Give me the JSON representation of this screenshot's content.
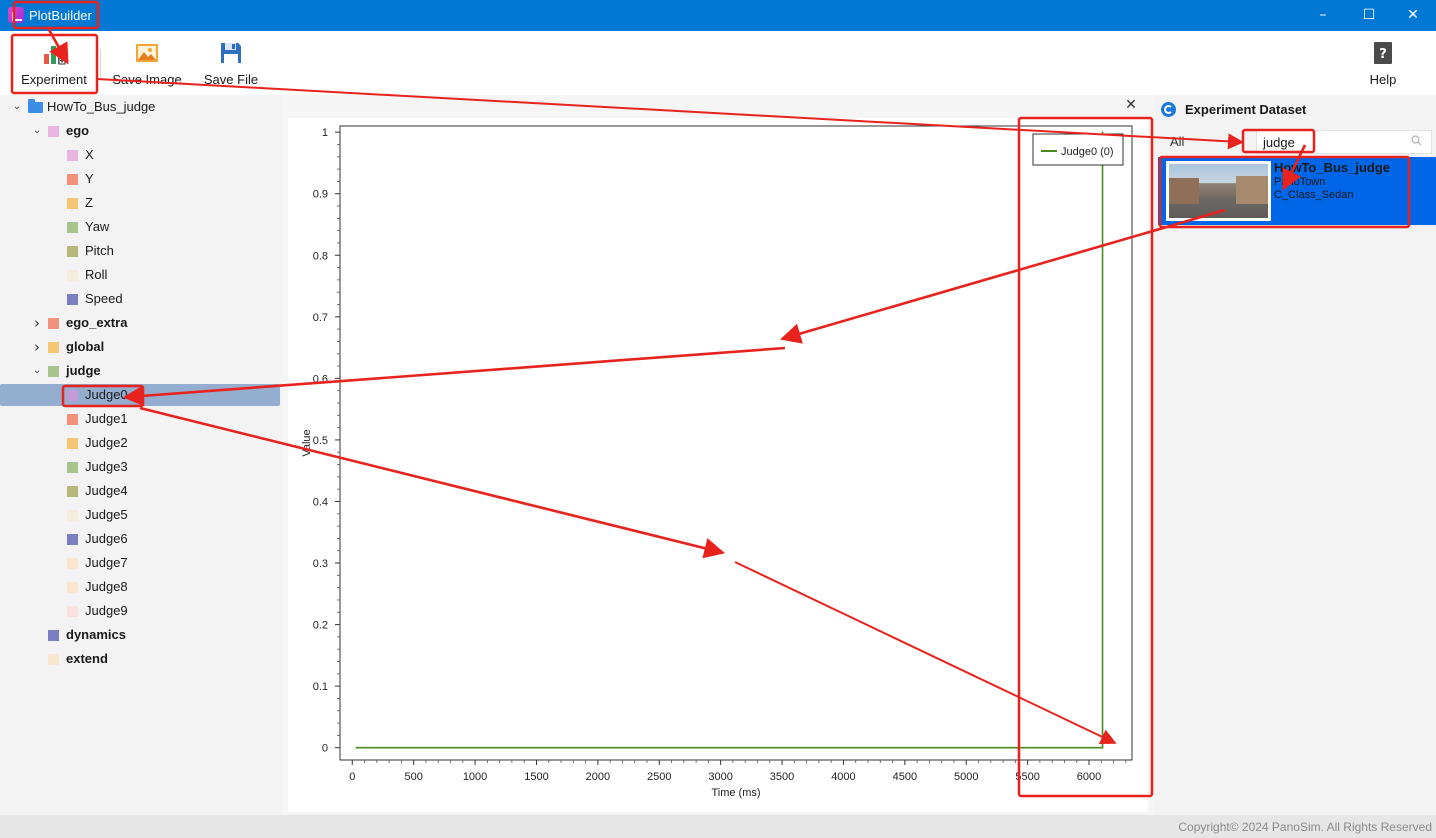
{
  "window": {
    "title": "PlotBuilder",
    "minimize_icon": "minimize-icon",
    "maximize_icon": "maximize-icon",
    "close_icon": "close-icon"
  },
  "toolbar": {
    "experiment": "Experiment",
    "save_image": "Save Image",
    "save_file": "Save File",
    "help": "Help"
  },
  "tree": {
    "root": "HowTo_Bus_judge",
    "groups": [
      {
        "label": "ego",
        "color": "#e8b4e0",
        "expanded": true,
        "items": [
          {
            "label": "X",
            "color": "#e8b4e0"
          },
          {
            "label": "Y",
            "color": "#f0937a"
          },
          {
            "label": "Z",
            "color": "#f5c774"
          },
          {
            "label": "Yaw",
            "color": "#a8c48c"
          },
          {
            "label": "Pitch",
            "color": "#b5b77a"
          },
          {
            "label": "Roll",
            "color": "#f5ecdf"
          },
          {
            "label": "Speed",
            "color": "#7b7fbf"
          }
        ]
      },
      {
        "label": "ego_extra",
        "color": "#f0937a",
        "expanded": false,
        "items": []
      },
      {
        "label": "global",
        "color": "#f5c774",
        "expanded": false,
        "items": []
      },
      {
        "label": "judge",
        "color": "#a8c48c",
        "expanded": true,
        "items": [
          {
            "label": "Judge0",
            "color": "#c39bd6",
            "selected": true
          },
          {
            "label": "Judge1",
            "color": "#f0937a"
          },
          {
            "label": "Judge2",
            "color": "#f5c774"
          },
          {
            "label": "Judge3",
            "color": "#a8c48c"
          },
          {
            "label": "Judge4",
            "color": "#b5b77a"
          },
          {
            "label": "Judge5",
            "color": "#f5ecdf"
          },
          {
            "label": "Judge6",
            "color": "#7b7fbf"
          },
          {
            "label": "Judge7",
            "color": "#f8e6d0"
          },
          {
            "label": "Judge8",
            "color": "#f8e6d0"
          },
          {
            "label": "Judge9",
            "color": "#f8e2e0"
          }
        ]
      },
      {
        "label": "dynamics",
        "color": "#7b7fbf",
        "expanded": null,
        "items": []
      },
      {
        "label": "extend",
        "color": "#f8e6d0",
        "expanded": null,
        "items": []
      }
    ]
  },
  "chart_data": {
    "type": "line",
    "title": "",
    "xlabel": "Time (ms)",
    "ylabel": "Value",
    "xlim": [
      -100,
      6350
    ],
    "ylim": [
      -0.02,
      1.01
    ],
    "xticks": [
      0,
      500,
      1000,
      1500,
      2000,
      2500,
      3000,
      3500,
      4000,
      4500,
      5000,
      5500,
      6000
    ],
    "yticks": [
      0,
      0.1,
      0.2,
      0.3,
      0.4,
      0.5,
      0.6,
      0.7,
      0.8,
      0.9,
      1
    ],
    "legend": "top-right",
    "grid": false,
    "series": [
      {
        "name": "Judge0 (0)",
        "color": "#4a8a1c",
        "x": [
          30,
          6100,
          6110,
          6110
        ],
        "y": [
          0,
          0,
          0,
          1
        ]
      }
    ]
  },
  "dataset": {
    "title": "Experiment Dataset",
    "filter": "All",
    "search_value": "judge",
    "items": [
      {
        "title": "HowTo_Bus_judge",
        "map": "PanoTown",
        "vehicle": "C_Class_Sedan",
        "selected": true
      }
    ]
  },
  "status": {
    "copyright": "Copyright© 2024 PanoSim. All Rights Reserved"
  },
  "annotation_color": "#e8231d"
}
